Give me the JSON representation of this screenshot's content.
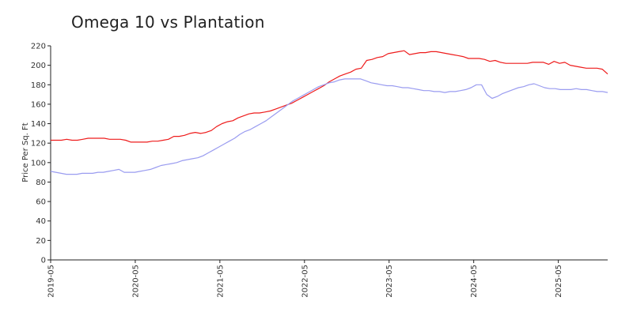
{
  "chart_data": {
    "type": "line",
    "title": "Omega 10 vs Plantation",
    "xlabel": "",
    "ylabel": "Price Per Sq. Ft",
    "ylim": [
      0,
      220
    ],
    "yticks": [
      0,
      20,
      40,
      60,
      80,
      100,
      120,
      140,
      160,
      180,
      200,
      220
    ],
    "xticks": [
      "2019-05",
      "2020-05",
      "2021-05",
      "2022-05",
      "2023-05",
      "2024-05",
      "2025-05"
    ],
    "x_start": "2019-05",
    "x_end": "2025-12",
    "grid": false,
    "series": [
      {
        "color": "#ee1c1c",
        "values": [
          123,
          123,
          123,
          124,
          123,
          123,
          124,
          125,
          125,
          125,
          125,
          124,
          124,
          124,
          123,
          121,
          121,
          121,
          121,
          122,
          122,
          123,
          124,
          127,
          127,
          128,
          130,
          131,
          130,
          131,
          133,
          137,
          140,
          142,
          143,
          146,
          148,
          150,
          151,
          151,
          152,
          153,
          155,
          157,
          159,
          161,
          164,
          167,
          170,
          173,
          176,
          179,
          183,
          186,
          189,
          191,
          193,
          196,
          197,
          205,
          206,
          208,
          209,
          212,
          213,
          214,
          215,
          211,
          212,
          213,
          213,
          214,
          214,
          213,
          212,
          211,
          210,
          209,
          207,
          207,
          207,
          206,
          204,
          205,
          203,
          202,
          202,
          202,
          202,
          202,
          203,
          203,
          203,
          201,
          204,
          202,
          203,
          200,
          199,
          198,
          197,
          197,
          197,
          196,
          191
        ]
      },
      {
        "color": "#9a9cf0",
        "values": [
          91,
          90,
          89,
          88,
          88,
          88,
          89,
          89,
          89,
          90,
          90,
          91,
          92,
          93,
          90,
          90,
          90,
          91,
          92,
          93,
          95,
          97,
          98,
          99,
          100,
          102,
          103,
          104,
          105,
          107,
          110,
          113,
          116,
          119,
          122,
          125,
          129,
          132,
          134,
          137,
          140,
          143,
          147,
          151,
          155,
          159,
          163,
          166,
          169,
          172,
          175,
          178,
          180,
          182,
          183,
          185,
          186,
          186,
          186,
          186,
          184,
          182,
          181,
          180,
          179,
          179,
          178,
          177,
          177,
          176,
          175,
          174,
          174,
          173,
          173,
          172,
          173,
          173,
          174,
          175,
          177,
          180,
          180,
          170,
          166,
          168,
          171,
          173,
          175,
          177,
          178,
          180,
          181,
          179,
          177,
          176,
          176,
          175,
          175,
          175,
          176,
          175,
          175,
          174,
          173,
          173,
          172
        ]
      }
    ]
  }
}
